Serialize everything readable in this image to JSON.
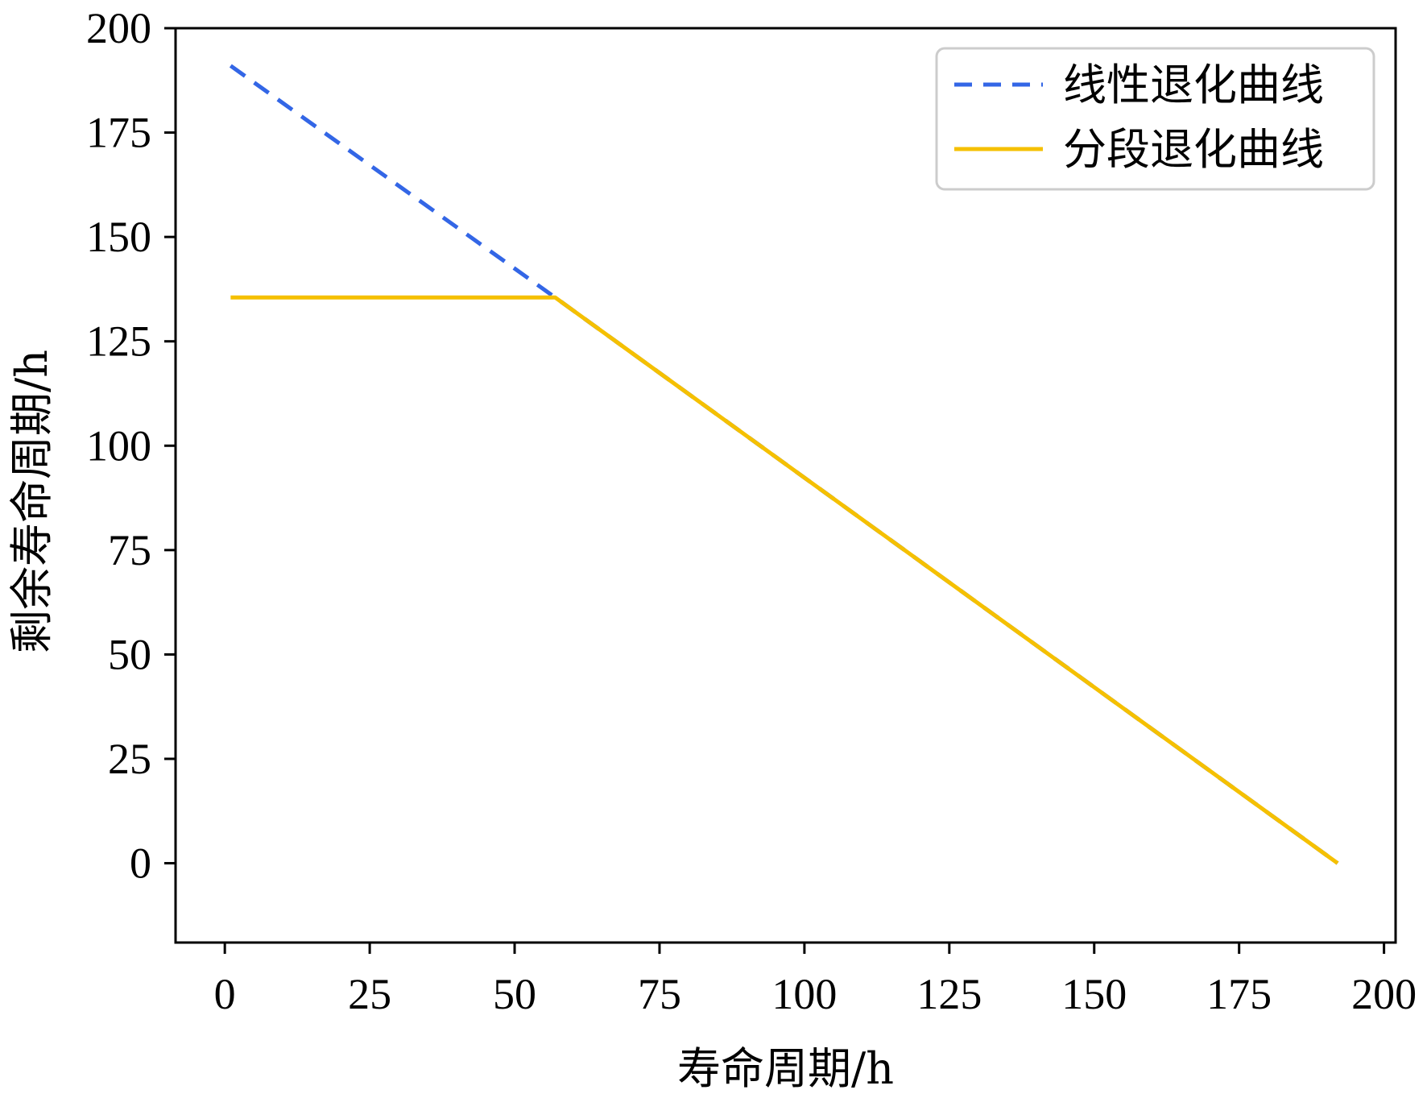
{
  "chart_data": {
    "type": "line",
    "title": "",
    "xlabel": "寿命周期/h",
    "ylabel": "剩余寿命周期/h",
    "xlim": [
      -8.5,
      202
    ],
    "ylim": [
      -19,
      200
    ],
    "xticks": [
      0,
      25,
      50,
      75,
      100,
      125,
      150,
      175,
      200
    ],
    "yticks": [
      0,
      25,
      50,
      75,
      100,
      125,
      150,
      175,
      200
    ],
    "grid": false,
    "legend_position": "top-right",
    "series": [
      {
        "name": "线性退化曲线",
        "style": "dashed",
        "color": "#3366e6",
        "x": [
          1,
          57,
          192
        ],
        "y": [
          191,
          135.5,
          0
        ]
      },
      {
        "name": "分段退化曲线",
        "style": "solid",
        "color": "#f5c000",
        "x": [
          1,
          57,
          192
        ],
        "y": [
          135.5,
          135.5,
          0
        ]
      }
    ]
  }
}
